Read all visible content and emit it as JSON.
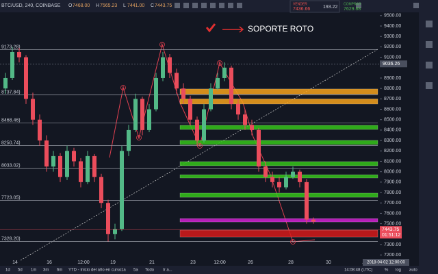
{
  "header": {
    "symbol": "BTC/USD, 240, COINBASE",
    "ohlc": [
      {
        "key": "O",
        "value": "7468.00"
      },
      {
        "key": "H",
        "value": "7565.23"
      },
      {
        "key": "L",
        "value": "7441.00"
      },
      {
        "key": "C",
        "value": "7443.75"
      }
    ]
  },
  "trade": {
    "sell_label": "VENDER",
    "sell_price": "7436.66",
    "spread": "193.22",
    "buy_label": "COMPRAR",
    "buy_price": "7629.88"
  },
  "chart": {
    "price_ticks": [
      {
        "value": 9500,
        "label": "9500.00"
      },
      {
        "value": 9400,
        "label": "9400.00"
      },
      {
        "value": 9300,
        "label": "9300.00"
      },
      {
        "value": 9200,
        "label": "9200.00"
      },
      {
        "value": 9100,
        "label": "9100.00"
      },
      {
        "value": 8900,
        "label": "8900.00"
      },
      {
        "value": 8800,
        "label": "8800.00"
      },
      {
        "value": 8700,
        "label": "8700.00"
      },
      {
        "value": 8600,
        "label": "8600.00"
      },
      {
        "value": 8500,
        "label": "8500.00"
      },
      {
        "value": 8400,
        "label": "8400.00"
      },
      {
        "value": 8300,
        "label": "8300.00"
      },
      {
        "value": 8200,
        "label": "8200.00"
      },
      {
        "value": 8100,
        "label": "8100.00"
      },
      {
        "value": 8000,
        "label": "8000.00"
      },
      {
        "value": 7900,
        "label": "7900.00"
      },
      {
        "value": 7800,
        "label": "7800.00"
      },
      {
        "value": 7700,
        "label": "7700.00"
      },
      {
        "value": 7600,
        "label": "7600.00"
      },
      {
        "value": 7500,
        "label": "7500.00"
      },
      {
        "value": 7300,
        "label": "7300.00"
      },
      {
        "value": 7200,
        "label": "7200.00"
      }
    ],
    "crosshair_price": 9036.26,
    "last_price": 7443.75,
    "countdown": "01:51:12",
    "levels": [
      {
        "value": 9173.28,
        "label": "9173.28)"
      },
      {
        "value": 8737.84,
        "label": "8737.84)"
      },
      {
        "value": 8468.46,
        "label": "8468.46)"
      },
      {
        "value": 8250.74,
        "label": "8250.74)"
      },
      {
        "value": 8033.02,
        "label": "8033.02)"
      },
      {
        "value": 7723.05,
        "label": "7723.05)"
      },
      {
        "value": 7328.2,
        "label": "7328.20)"
      }
    ],
    "zones": [
      {
        "low": 8745,
        "high": 8795,
        "color": "#f7a21b"
      },
      {
        "low": 8650,
        "high": 8700,
        "color": "#f7a21b"
      },
      {
        "low": 8406,
        "high": 8446,
        "color": "#35c419"
      },
      {
        "low": 8261,
        "high": 8301,
        "color": "#35c419"
      },
      {
        "low": 8057,
        "high": 8097,
        "color": "#35c419"
      },
      {
        "low": 7939,
        "high": 7971,
        "color": "#35c419"
      },
      {
        "low": 7754,
        "high": 7794,
        "color": "#35c419"
      },
      {
        "low": 7517,
        "high": 7550,
        "color": "#d21fd2"
      },
      {
        "low": 7372,
        "high": 7438,
        "color": "#d61a1a"
      }
    ],
    "candles": [
      [
        8800,
        8950,
        8750,
        8900
      ],
      [
        8900,
        9200,
        8880,
        9150
      ],
      [
        9150,
        9190,
        9050,
        9100
      ],
      [
        9100,
        9120,
        8650,
        8700
      ],
      [
        8700,
        8760,
        8450,
        8500
      ],
      [
        8500,
        8550,
        8250,
        8300
      ],
      [
        8300,
        8350,
        8000,
        8050
      ],
      [
        8050,
        8200,
        8000,
        8150
      ],
      [
        8150,
        8180,
        7900,
        7950
      ],
      [
        7950,
        8250,
        7920,
        8200
      ],
      [
        8200,
        8230,
        8050,
        8100
      ],
      [
        8100,
        8130,
        7850,
        7900
      ],
      [
        7900,
        8200,
        7880,
        8150
      ],
      [
        8150,
        8170,
        7900,
        7950
      ],
      [
        7950,
        7980,
        7650,
        7700
      ],
      [
        7700,
        7730,
        7330,
        7400
      ],
      [
        7400,
        7500,
        7350,
        7450
      ],
      [
        7450,
        8250,
        7430,
        8200
      ],
      [
        8200,
        8450,
        8150,
        8400
      ],
      [
        8400,
        8750,
        8380,
        8700
      ],
      [
        8700,
        8720,
        8350,
        8400
      ],
      [
        8400,
        8650,
        8380,
        8600
      ],
      [
        8600,
        8950,
        8580,
        8900
      ],
      [
        8900,
        9150,
        8870,
        9100
      ],
      [
        9100,
        9130,
        8900,
        8950
      ],
      [
        8950,
        8990,
        8750,
        8800
      ],
      [
        8800,
        8850,
        8650,
        8700
      ],
      [
        8700,
        8730,
        8450,
        8500
      ],
      [
        8500,
        8530,
        8250,
        8300
      ],
      [
        8300,
        8650,
        8280,
        8600
      ],
      [
        8600,
        8850,
        8580,
        8800
      ],
      [
        8800,
        8950,
        8780,
        8900
      ],
      [
        8900,
        9050,
        8870,
        9000
      ],
      [
        9000,
        9020,
        8600,
        8650
      ],
      [
        8650,
        8700,
        8500,
        8550
      ],
      [
        8550,
        8600,
        8400,
        8450
      ],
      [
        8450,
        8500,
        8350,
        8400
      ],
      [
        8400,
        8420,
        8000,
        8050
      ],
      [
        8050,
        8100,
        7900,
        7950
      ],
      [
        7950,
        8000,
        7850,
        7900
      ],
      [
        7900,
        7950,
        7800,
        7850
      ],
      [
        7850,
        8000,
        7830,
        7950
      ],
      [
        7950,
        8050,
        7930,
        8000
      ],
      [
        8000,
        8020,
        7850,
        7900
      ],
      [
        7900,
        7930,
        7500,
        7540
      ],
      [
        7540,
        7560,
        7500,
        7520
      ]
    ],
    "annotation": "SOPORTE ROTO",
    "wave_labels": [
      "A",
      "B",
      "C",
      "A",
      "B",
      "C"
    ],
    "time_labels": [
      "14",
      "16",
      "12:00",
      "19",
      "21",
      "23",
      "12:00",
      "26",
      "28",
      "30",
      "Abr"
    ],
    "crosshair_time": "2018-04-02 12:00:00"
  },
  "toolbar": {
    "ranges": [
      "1d",
      "5d",
      "1m",
      "3m",
      "6m",
      "YTD - Inicio del año en curso",
      "1a",
      "5a",
      "Todo",
      "Ir a..."
    ],
    "clock": "14:08:48 (UTC)",
    "options": [
      "%",
      "log",
      "auto"
    ]
  }
}
